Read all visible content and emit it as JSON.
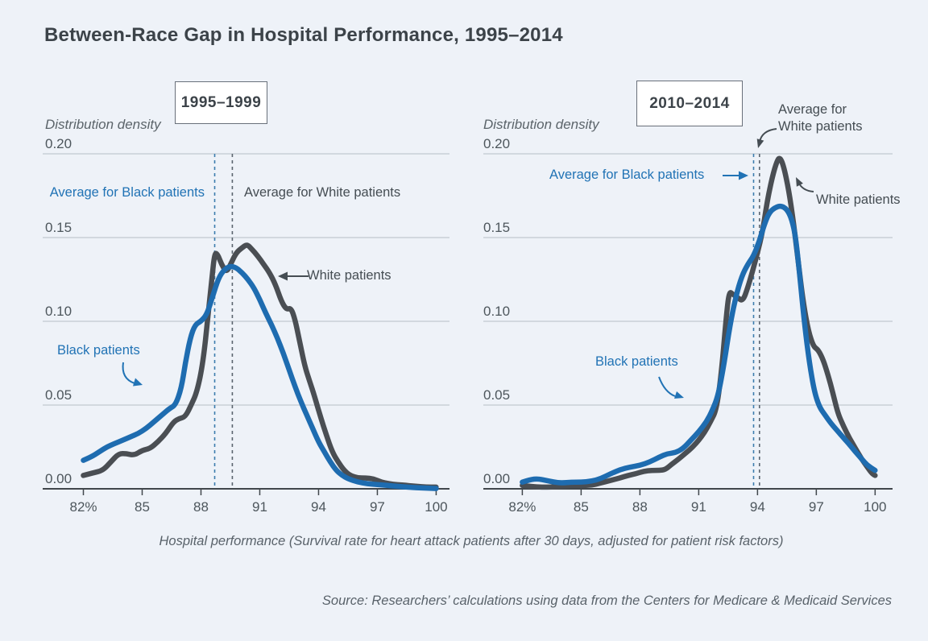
{
  "page": {
    "title": "Between-Race Gap in Hospital Performance, 1995–2014",
    "x_axis_caption": "Hospital performance (Survival rate for heart attack patients after 30 days, adjusted for patient risk factors)",
    "source": "Source: Researchers’ calculations using data from the Centers for Medicare & Medicaid Services"
  },
  "colors": {
    "background": "#eef2f8",
    "black_series": "#1e6cb0",
    "white_series": "#4a4e53",
    "grid": "#c2c9d0",
    "axis": "#41474c",
    "blue_text": "#2173b5",
    "dark_text": "#454d53",
    "avg_black_line": "#3c7cae",
    "avg_white_line": "#5a646e"
  },
  "chart_data": [
    {
      "type": "line",
      "panel_label": "1995–1999",
      "y_axis_title": "Distribution density",
      "xlim": [
        82,
        100
      ],
      "ylim": [
        0,
        0.2
      ],
      "grid": true,
      "x_tick_labels": [
        "82%",
        "85",
        "88",
        "91",
        "94",
        "97",
        "100"
      ],
      "x_tick_values": [
        82,
        85,
        88,
        91,
        94,
        97,
        100
      ],
      "y_tick_labels": [
        "0.20",
        "0.15",
        "0.10",
        "0.05",
        "0.00"
      ],
      "y_tick_values": [
        0.2,
        0.15,
        0.1,
        0.05,
        0.0
      ],
      "averages": {
        "black": {
          "label": "Average for Black patients",
          "value": 88.7
        },
        "white": {
          "label": "Average for White patients",
          "value": 89.6
        }
      },
      "series": [
        {
          "name": "White patients",
          "color": "#4a4e53",
          "points": [
            [
              82,
              0.008
            ],
            [
              82.5,
              0.0095
            ],
            [
              83,
              0.011
            ],
            [
              83.4,
              0.016
            ],
            [
              83.8,
              0.021
            ],
            [
              84.2,
              0.021
            ],
            [
              84.6,
              0.02
            ],
            [
              85,
              0.023
            ],
            [
              85.4,
              0.024
            ],
            [
              85.8,
              0.028
            ],
            [
              86.2,
              0.033
            ],
            [
              86.6,
              0.04
            ],
            [
              86.9,
              0.042
            ],
            [
              87.2,
              0.043
            ],
            [
              87.5,
              0.05
            ],
            [
              87.8,
              0.058
            ],
            [
              88.1,
              0.075
            ],
            [
              88.35,
              0.102
            ],
            [
              88.55,
              0.125
            ],
            [
              88.7,
              0.141
            ],
            [
              88.85,
              0.14
            ],
            [
              89.05,
              0.134
            ],
            [
              89.3,
              0.129
            ],
            [
              89.55,
              0.135
            ],
            [
              89.8,
              0.141
            ],
            [
              90.1,
              0.144
            ],
            [
              90.35,
              0.146
            ],
            [
              90.6,
              0.143
            ],
            [
              90.9,
              0.139
            ],
            [
              91.2,
              0.134
            ],
            [
              91.5,
              0.129
            ],
            [
              91.8,
              0.122
            ],
            [
              92.1,
              0.112
            ],
            [
              92.35,
              0.107
            ],
            [
              92.6,
              0.108
            ],
            [
              92.8,
              0.101
            ],
            [
              93,
              0.09
            ],
            [
              93.3,
              0.073
            ],
            [
              93.55,
              0.064
            ],
            [
              93.8,
              0.055
            ],
            [
              94.1,
              0.043
            ],
            [
              94.4,
              0.032
            ],
            [
              94.7,
              0.022
            ],
            [
              95,
              0.016
            ],
            [
              95.3,
              0.011
            ],
            [
              95.6,
              0.008
            ],
            [
              96,
              0.0065
            ],
            [
              96.4,
              0.0065
            ],
            [
              96.8,
              0.006
            ],
            [
              97.2,
              0.004
            ],
            [
              97.6,
              0.003
            ],
            [
              98,
              0.0025
            ],
            [
              98.5,
              0.002
            ],
            [
              99,
              0.0015
            ],
            [
              99.5,
              0.001
            ],
            [
              100,
              0.001
            ]
          ]
        },
        {
          "name": "Black patients",
          "color": "#1e6cb0",
          "points": [
            [
              82,
              0.017
            ],
            [
              82.4,
              0.019
            ],
            [
              82.8,
              0.022
            ],
            [
              83.2,
              0.025
            ],
            [
              83.6,
              0.027
            ],
            [
              84,
              0.029
            ],
            [
              84.4,
              0.031
            ],
            [
              84.8,
              0.033
            ],
            [
              85.2,
              0.036
            ],
            [
              85.6,
              0.04
            ],
            [
              86,
              0.044
            ],
            [
              86.4,
              0.048
            ],
            [
              86.7,
              0.05
            ],
            [
              87,
              0.06
            ],
            [
              87.2,
              0.075
            ],
            [
              87.45,
              0.09
            ],
            [
              87.7,
              0.098
            ],
            [
              88,
              0.1
            ],
            [
              88.3,
              0.104
            ],
            [
              88.6,
              0.115
            ],
            [
              88.9,
              0.126
            ],
            [
              89.2,
              0.131
            ],
            [
              89.5,
              0.133
            ],
            [
              89.8,
              0.132
            ],
            [
              90.1,
              0.129
            ],
            [
              90.4,
              0.125
            ],
            [
              90.7,
              0.12
            ],
            [
              91,
              0.113
            ],
            [
              91.3,
              0.105
            ],
            [
              91.6,
              0.098
            ],
            [
              91.9,
              0.09
            ],
            [
              92.2,
              0.081
            ],
            [
              92.5,
              0.071
            ],
            [
              92.8,
              0.061
            ],
            [
              93.1,
              0.052
            ],
            [
              93.4,
              0.044
            ],
            [
              93.7,
              0.036
            ],
            [
              94,
              0.028
            ],
            [
              94.3,
              0.022
            ],
            [
              94.6,
              0.016
            ],
            [
              94.9,
              0.011
            ],
            [
              95.2,
              0.008
            ],
            [
              95.5,
              0.006
            ],
            [
              96,
              0.004
            ],
            [
              96.5,
              0.003
            ],
            [
              97,
              0.0025
            ],
            [
              97.5,
              0.002
            ],
            [
              98,
              0.0015
            ],
            [
              98.5,
              0.001
            ],
            [
              99,
              0.0007
            ],
            [
              99.5,
              0.0004
            ],
            [
              100,
              0.0002
            ]
          ]
        }
      ]
    },
    {
      "type": "line",
      "panel_label": "2010–2014",
      "y_axis_title": "Distribution density",
      "xlim": [
        82,
        100
      ],
      "ylim": [
        0,
        0.2
      ],
      "grid": true,
      "x_tick_labels": [
        "82%",
        "85",
        "88",
        "91",
        "94",
        "97",
        "100"
      ],
      "x_tick_values": [
        82,
        85,
        88,
        91,
        94,
        97,
        100
      ],
      "y_tick_labels": [
        "0.20",
        "0.15",
        "0.10",
        "0.05",
        "0.00"
      ],
      "y_tick_values": [
        0.2,
        0.15,
        0.1,
        0.05,
        0.0
      ],
      "averages": {
        "black": {
          "label": "Average for Black patients",
          "value": 93.8
        },
        "white": {
          "label": "Average for\nWhite patients",
          "value": 94.1
        }
      },
      "series": [
        {
          "name": "White patients",
          "color": "#4a4e53",
          "points": [
            [
              82,
              0.002
            ],
            [
              82.5,
              0.0013
            ],
            [
              83,
              0.001
            ],
            [
              83.5,
              0.001
            ],
            [
              84,
              0.0015
            ],
            [
              84.5,
              0.002
            ],
            [
              85,
              0.002
            ],
            [
              85.5,
              0.002
            ],
            [
              86,
              0.0035
            ],
            [
              86.5,
              0.005
            ],
            [
              87,
              0.0065
            ],
            [
              87.4,
              0.008
            ],
            [
              87.8,
              0.009
            ],
            [
              88.2,
              0.0105
            ],
            [
              88.6,
              0.011
            ],
            [
              89,
              0.011
            ],
            [
              89.3,
              0.0115
            ],
            [
              89.6,
              0.0145
            ],
            [
              90,
              0.018
            ],
            [
              90.3,
              0.021
            ],
            [
              90.7,
              0.025
            ],
            [
              91,
              0.029
            ],
            [
              91.3,
              0.0337
            ],
            [
              91.6,
              0.04
            ],
            [
              91.9,
              0.047
            ],
            [
              92.15,
              0.068
            ],
            [
              92.4,
              0.102
            ],
            [
              92.55,
              0.118
            ],
            [
              92.75,
              0.116
            ],
            [
              93,
              0.114
            ],
            [
              93.25,
              0.112
            ],
            [
              93.5,
              0.12
            ],
            [
              93.75,
              0.13
            ],
            [
              94,
              0.141
            ],
            [
              94.25,
              0.153
            ],
            [
              94.5,
              0.172
            ],
            [
              94.75,
              0.186
            ],
            [
              95,
              0.196
            ],
            [
              95.15,
              0.198
            ],
            [
              95.35,
              0.192
            ],
            [
              95.6,
              0.178
            ],
            [
              95.85,
              0.158
            ],
            [
              96.1,
              0.133
            ],
            [
              96.35,
              0.11
            ],
            [
              96.6,
              0.094
            ],
            [
              96.85,
              0.085
            ],
            [
              97.1,
              0.083
            ],
            [
              97.35,
              0.077
            ],
            [
              97.6,
              0.068
            ],
            [
              97.85,
              0.057
            ],
            [
              98.1,
              0.045
            ],
            [
              98.4,
              0.037
            ],
            [
              98.7,
              0.03
            ],
            [
              99,
              0.024
            ],
            [
              99.3,
              0.018
            ],
            [
              99.6,
              0.013
            ],
            [
              99.85,
              0.009
            ],
            [
              100,
              0.008
            ]
          ]
        },
        {
          "name": "Black patients",
          "color": "#1e6cb0",
          "points": [
            [
              82,
              0.004
            ],
            [
              82.4,
              0.0055
            ],
            [
              82.8,
              0.006
            ],
            [
              83.2,
              0.005
            ],
            [
              83.6,
              0.004
            ],
            [
              84,
              0.0035
            ],
            [
              84.5,
              0.004
            ],
            [
              85,
              0.004
            ],
            [
              85.5,
              0.0045
            ],
            [
              86,
              0.006
            ],
            [
              86.5,
              0.009
            ],
            [
              87,
              0.0115
            ],
            [
              87.5,
              0.013
            ],
            [
              88,
              0.014
            ],
            [
              88.5,
              0.016
            ],
            [
              89,
              0.019
            ],
            [
              89.4,
              0.021
            ],
            [
              89.8,
              0.0215
            ],
            [
              90.2,
              0.024
            ],
            [
              90.6,
              0.029
            ],
            [
              91,
              0.034
            ],
            [
              91.4,
              0.04
            ],
            [
              91.7,
              0.047
            ],
            [
              92,
              0.056
            ],
            [
              92.3,
              0.075
            ],
            [
              92.6,
              0.098
            ],
            [
              92.9,
              0.115
            ],
            [
              93.2,
              0.127
            ],
            [
              93.5,
              0.134
            ],
            [
              93.8,
              0.139
            ],
            [
              94.1,
              0.148
            ],
            [
              94.35,
              0.158
            ],
            [
              94.6,
              0.165
            ],
            [
              94.9,
              0.168
            ],
            [
              95.2,
              0.169
            ],
            [
              95.5,
              0.167
            ],
            [
              95.75,
              0.161
            ],
            [
              95.95,
              0.15
            ],
            [
              96.15,
              0.128
            ],
            [
              96.4,
              0.098
            ],
            [
              96.65,
              0.075
            ],
            [
              96.9,
              0.058
            ],
            [
              97.15,
              0.049
            ],
            [
              97.45,
              0.044
            ],
            [
              97.75,
              0.039
            ],
            [
              98.05,
              0.035
            ],
            [
              98.35,
              0.031
            ],
            [
              98.65,
              0.027
            ],
            [
              99,
              0.022
            ],
            [
              99.3,
              0.018
            ],
            [
              99.6,
              0.014
            ],
            [
              100,
              0.011
            ]
          ]
        }
      ]
    }
  ]
}
